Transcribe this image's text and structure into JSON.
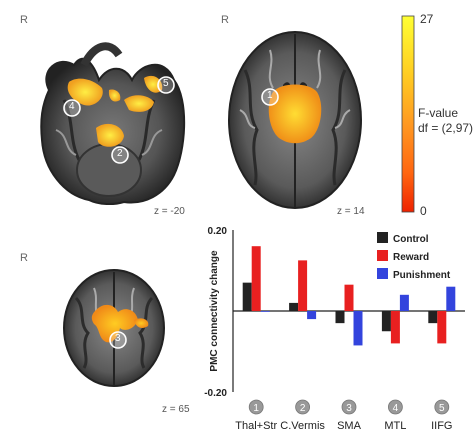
{
  "brain_panels": {
    "axial_inferior": {
      "r_label": "R",
      "z_label": "z = -20"
    },
    "axial_superior": {
      "r_label": "R",
      "z_label": "z = 14"
    },
    "axial_top": {
      "r_label": "R",
      "z_label": "z = 65"
    }
  },
  "roi_markers": {
    "m1": "1",
    "m2": "2",
    "m3": "3",
    "m4": "4",
    "m5": "5"
  },
  "colorbar": {
    "max_label": "27",
    "min_label": "0",
    "title_line1": "F-value",
    "title_line2": "df = (2,97)",
    "colors": [
      "#ffff33",
      "#ffcc22",
      "#ff9922",
      "#ff6611",
      "#ee2200"
    ]
  },
  "chart_data": {
    "type": "bar",
    "ylabel": "PMC connectivity change",
    "ylim": [
      -0.2,
      0.2
    ],
    "ytick_labels": [
      "0.20",
      "-0.20"
    ],
    "categories": [
      "Thal+Str",
      "C.Vermis",
      "SMA",
      "MTL",
      "IIFG"
    ],
    "category_numbers": [
      "1",
      "2",
      "3",
      "4",
      "5"
    ],
    "series": [
      {
        "name": "Control",
        "color": "#222222",
        "values": [
          0.07,
          0.02,
          -0.03,
          -0.05,
          -0.03
        ]
      },
      {
        "name": "Reward",
        "color": "#e82020",
        "values": [
          0.16,
          0.125,
          0.065,
          -0.08,
          -0.08
        ]
      },
      {
        "name": "Punishment",
        "color": "#3344dd",
        "values": [
          0.0,
          -0.02,
          -0.085,
          0.04,
          0.06
        ]
      }
    ],
    "legend_position": "top-right",
    "grid": false
  }
}
